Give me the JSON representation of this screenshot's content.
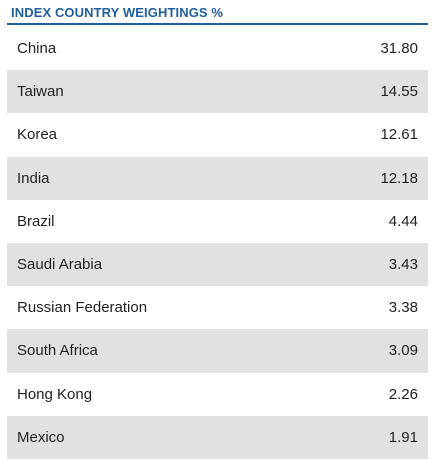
{
  "title": "INDEX COUNTRY WEIGHTINGS %",
  "accent_color": "#1f5fa0",
  "stripe_color": "#e1e1e1",
  "rows": [
    {
      "country": "China",
      "value": "31.80"
    },
    {
      "country": "Taiwan",
      "value": "14.55"
    },
    {
      "country": "Korea",
      "value": "12.61"
    },
    {
      "country": "India",
      "value": "12.18"
    },
    {
      "country": "Brazil",
      "value": "4.44"
    },
    {
      "country": "Saudi Arabia",
      "value": "3.43"
    },
    {
      "country": "Russian Federation",
      "value": "3.38"
    },
    {
      "country": "South Africa",
      "value": "3.09"
    },
    {
      "country": "Hong Kong",
      "value": "2.26"
    },
    {
      "country": "Mexico",
      "value": "1.91"
    }
  ]
}
